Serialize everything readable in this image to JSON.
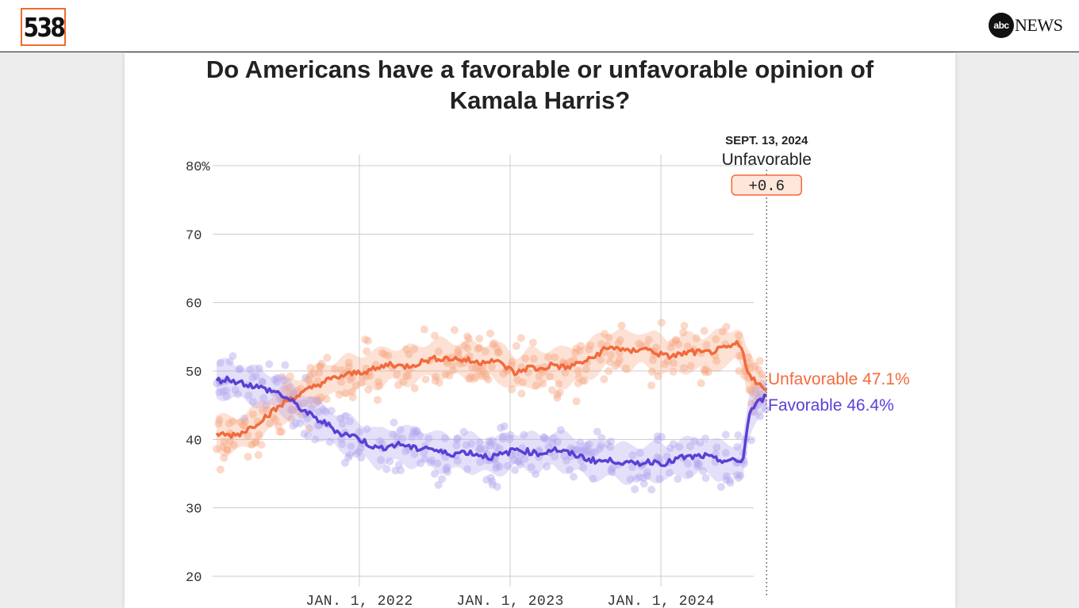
{
  "header": {
    "logo_text": "538",
    "network_badge": "abc",
    "network_text": "NEWS"
  },
  "title": "Do Americans have a favorable or unfavorable opinion of Kamala Harris?",
  "annotation": {
    "date": "SEPT. 13, 2024",
    "leader": "Unfavorable",
    "margin": "+0.6"
  },
  "colors": {
    "unfavorable": "#f26a3c",
    "favorable": "#5b3fd6",
    "unfavorable_light": "#f7a985",
    "favorable_light": "#b3a6ee",
    "grid": "#cccccc"
  },
  "chart_data": {
    "type": "line",
    "title": "Do Americans have a favorable or unfavorable opinion of Kamala Harris?",
    "xlabel": "",
    "ylabel": "",
    "ylim": [
      20,
      80
    ],
    "y_ticks": [
      {
        "value": 80,
        "label": "80%"
      },
      {
        "value": 70,
        "label": "70"
      },
      {
        "value": 60,
        "label": "60"
      },
      {
        "value": 50,
        "label": "50"
      },
      {
        "value": 40,
        "label": "40"
      },
      {
        "value": 30,
        "label": "30"
      },
      {
        "value": 20,
        "label": "20"
      }
    ],
    "x_range": [
      "2021-01-20",
      "2024-09-13"
    ],
    "x_ticks": [
      {
        "date": "2022-01-01",
        "label": "JAN. 1, 2022"
      },
      {
        "date": "2023-01-01",
        "label": "JAN. 1, 2023"
      },
      {
        "date": "2024-01-01",
        "label": "JAN. 1, 2024"
      }
    ],
    "grid": true,
    "legend": "end-of-line labels",
    "series": [
      {
        "name": "Unfavorable",
        "end_label": "Unfavorable 47.1%",
        "color": "#f26a3c",
        "points": [
          [
            "2021-01-20",
            40.9
          ],
          [
            "2021-02-15",
            40.6
          ],
          [
            "2021-03-15",
            40.8
          ],
          [
            "2021-04-15",
            41.8
          ],
          [
            "2021-05-15",
            43.2
          ],
          [
            "2021-06-15",
            44.5
          ],
          [
            "2021-07-15",
            45.9
          ],
          [
            "2021-08-15",
            46.7
          ],
          [
            "2021-09-15",
            47.8
          ],
          [
            "2021-10-15",
            48.6
          ],
          [
            "2021-11-15",
            49.2
          ],
          [
            "2021-12-15",
            49.6
          ],
          [
            "2022-01-15",
            50.0
          ],
          [
            "2022-02-15",
            50.3
          ],
          [
            "2022-03-15",
            51.1
          ],
          [
            "2022-04-15",
            50.6
          ],
          [
            "2022-05-15",
            51.0
          ],
          [
            "2022-06-15",
            51.6
          ],
          [
            "2022-07-15",
            51.9
          ],
          [
            "2022-08-15",
            51.8
          ],
          [
            "2022-09-15",
            51.6
          ],
          [
            "2022-10-15",
            51.2
          ],
          [
            "2022-11-15",
            51.7
          ],
          [
            "2022-12-15",
            50.9
          ],
          [
            "2023-01-15",
            49.6
          ],
          [
            "2023-02-15",
            50.6
          ],
          [
            "2023-03-15",
            50.2
          ],
          [
            "2023-04-15",
            51.0
          ],
          [
            "2023-05-15",
            50.4
          ],
          [
            "2023-06-15",
            51.1
          ],
          [
            "2023-07-15",
            51.7
          ],
          [
            "2023-08-15",
            53.1
          ],
          [
            "2023-09-15",
            53.5
          ],
          [
            "2023-10-15",
            52.7
          ],
          [
            "2023-11-15",
            53.4
          ],
          [
            "2023-12-15",
            52.8
          ],
          [
            "2024-01-15",
            52.1
          ],
          [
            "2024-02-15",
            52.4
          ],
          [
            "2024-03-15",
            52.8
          ],
          [
            "2024-04-15",
            52.6
          ],
          [
            "2024-05-15",
            53.0
          ],
          [
            "2024-06-15",
            53.4
          ],
          [
            "2024-07-01",
            54.0
          ],
          [
            "2024-07-15",
            53.3
          ],
          [
            "2024-07-25",
            50.6
          ],
          [
            "2024-08-05",
            49.4
          ],
          [
            "2024-08-20",
            48.3
          ],
          [
            "2024-09-01",
            47.6
          ],
          [
            "2024-09-13",
            47.1
          ]
        ]
      },
      {
        "name": "Favorable",
        "end_label": "Favorable 46.4%",
        "color": "#5b3fd6",
        "points": [
          [
            "2021-01-20",
            48.6
          ],
          [
            "2021-02-15",
            48.8
          ],
          [
            "2021-03-15",
            48.4
          ],
          [
            "2021-04-15",
            47.9
          ],
          [
            "2021-05-15",
            47.4
          ],
          [
            "2021-06-15",
            46.9
          ],
          [
            "2021-07-15",
            45.8
          ],
          [
            "2021-08-15",
            44.4
          ],
          [
            "2021-09-15",
            43.1
          ],
          [
            "2021-10-15",
            42.2
          ],
          [
            "2021-11-15",
            40.9
          ],
          [
            "2021-12-15",
            40.6
          ],
          [
            "2022-01-15",
            39.6
          ],
          [
            "2022-02-15",
            38.6
          ],
          [
            "2022-03-15",
            39.1
          ],
          [
            "2022-04-15",
            39.3
          ],
          [
            "2022-05-15",
            38.6
          ],
          [
            "2022-06-15",
            38.9
          ],
          [
            "2022-07-15",
            38.1
          ],
          [
            "2022-08-15",
            37.9
          ],
          [
            "2022-09-15",
            38.2
          ],
          [
            "2022-10-15",
            37.8
          ],
          [
            "2022-11-15",
            37.4
          ],
          [
            "2022-12-15",
            37.8
          ],
          [
            "2023-01-15",
            38.6
          ],
          [
            "2023-02-15",
            38.2
          ],
          [
            "2023-03-15",
            37.9
          ],
          [
            "2023-04-15",
            38.6
          ],
          [
            "2023-05-15",
            38.1
          ],
          [
            "2023-06-15",
            37.6
          ],
          [
            "2023-07-15",
            37.0
          ],
          [
            "2023-08-15",
            36.8
          ],
          [
            "2023-09-15",
            36.9
          ],
          [
            "2023-10-15",
            36.4
          ],
          [
            "2023-11-15",
            36.6
          ],
          [
            "2023-12-15",
            36.8
          ],
          [
            "2024-01-15",
            36.5
          ],
          [
            "2024-02-15",
            37.3
          ],
          [
            "2024-03-15",
            37.4
          ],
          [
            "2024-04-15",
            37.6
          ],
          [
            "2024-05-15",
            37.0
          ],
          [
            "2024-06-15",
            36.9
          ],
          [
            "2024-07-10",
            36.7
          ],
          [
            "2024-07-20",
            37.5
          ],
          [
            "2024-07-28",
            42.0
          ],
          [
            "2024-08-05",
            44.2
          ],
          [
            "2024-08-20",
            45.2
          ],
          [
            "2024-09-01",
            45.8
          ],
          [
            "2024-09-13",
            46.4
          ]
        ]
      }
    ]
  }
}
